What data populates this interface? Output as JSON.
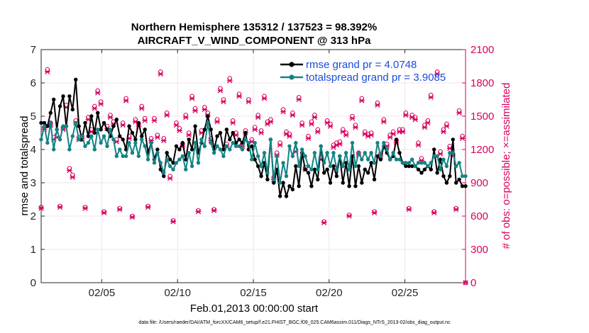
{
  "chart_data": {
    "type": "line",
    "title": [
      "Northern Hemisphere 135312 / 137523 = 98.392%",
      "AIRCRAFT_V_WIND_COMPONENT @ 313 hPa"
    ],
    "xlabel": "Feb.01,2013 00:00:00 start",
    "ylabel": "rmse and totalspread",
    "ylabel_right": "# of obs: o=possible; ×=assimilated",
    "xlim": [
      1.0,
      29.0
    ],
    "ylim": [
      0,
      7
    ],
    "ylim_right": [
      0,
      2100
    ],
    "x_ticks": [
      {
        "value": 5,
        "label": "02/05"
      },
      {
        "value": 10,
        "label": "02/10"
      },
      {
        "value": 15,
        "label": "02/15"
      },
      {
        "value": 20,
        "label": "02/20"
      },
      {
        "value": 25,
        "label": "02/25"
      }
    ],
    "y_ticks": [
      0,
      1,
      2,
      3,
      4,
      5,
      6,
      7
    ],
    "y_ticks_right": [
      0,
      300,
      600,
      900,
      1200,
      1500,
      1800,
      2100
    ],
    "grid": true,
    "legend_position": "top-right",
    "footer": "data file: /Users/raeder/DAI/ATM_forcXX/CAM6_setup/f.e21.FHIST_BGC.f09_025.CAM6assim.011/Diags_NTrS_2013-02/obs_diag_output.nc",
    "colors": {
      "rmse": "#000000",
      "spread": "#138384",
      "obs": "#d8005f"
    },
    "series": [
      {
        "name": "rmse grand pr = 4.0748",
        "color": "#000000",
        "y": [
          4.8,
          4.8,
          4.7,
          5.1,
          5.5,
          4.6,
          5.3,
          5.6,
          4.7,
          5.6,
          5.2,
          6.1,
          4.7,
          4.3,
          4.8,
          4.4,
          5.0,
          4.5,
          5.1,
          4.6,
          4.8,
          4.6,
          4.4,
          4.7,
          4.9,
          4.4,
          4.3,
          4.0,
          4.7,
          4.5,
          4.3,
          4.8,
          4.4,
          4.6,
          3.9,
          4.2,
          3.7,
          4.0,
          3.4,
          3.2,
          3.9,
          3.7,
          3.6,
          4.1,
          4.0,
          4.2,
          3.7,
          4.3,
          4.0,
          4.7,
          3.9,
          4.2,
          4.6,
          5.0,
          4.6,
          4.0,
          4.4,
          4.5,
          4.0,
          4.6,
          4.3,
          4.5,
          4.2,
          4.3,
          4.2,
          4.5,
          4.0,
          4.1,
          3.7,
          3.5,
          3.2,
          3.6,
          3.1,
          4.3,
          3.0,
          3.4,
          2.6,
          3.0,
          2.6,
          2.9,
          2.8,
          3.5,
          2.9,
          3.9,
          3.4,
          3.3,
          2.9,
          3.4,
          3.1,
          4.1,
          3.3,
          3.4,
          3.0,
          3.5,
          3.2,
          3.8,
          3.0,
          3.6,
          2.9,
          3.8,
          2.9,
          3.5,
          3.0,
          3.4,
          3.3,
          3.6,
          3.1,
          3.8,
          3.7,
          4.1,
          3.9,
          3.7,
          3.8,
          4.3,
          3.9,
          3.6,
          3.5,
          3.5,
          3.5,
          3.5,
          3.4,
          3.3,
          3.4,
          3.5,
          3.4,
          4.0,
          3.3,
          3.7,
          3.2,
          3.0,
          3.2,
          4.3,
          3.0,
          3.1,
          2.9,
          2.9
        ]
      },
      {
        "name": "totalspread grand pr = 3.9085",
        "color": "#138384",
        "y": [
          4.3,
          4.7,
          4.2,
          4.8,
          4.0,
          4.6,
          4.3,
          4.7,
          4.7,
          4.0,
          4.4,
          4.8,
          4.3,
          4.4,
          4.1,
          4.2,
          4.4,
          4.0,
          4.6,
          4.2,
          4.4,
          4.1,
          4.6,
          4.3,
          3.8,
          4.0,
          3.8,
          3.8,
          4.2,
          3.9,
          4.2,
          3.8,
          4.3,
          4.1,
          3.7,
          4.2,
          3.6,
          3.9,
          3.6,
          3.3,
          3.7,
          3.5,
          3.4,
          3.6,
          3.7,
          3.8,
          3.4,
          3.9,
          3.5,
          4.2,
          3.6,
          4.3,
          4.1,
          4.8,
          4.2,
          3.9,
          4.1,
          4.0,
          3.8,
          4.1,
          4.0,
          4.2,
          4.1,
          4.1,
          4.0,
          4.3,
          4.2,
          3.7,
          4.2,
          3.8,
          3.5,
          3.9,
          3.3,
          4.3,
          3.1,
          3.8,
          3.0,
          3.6,
          3.2,
          4.1,
          3.8,
          4.2,
          3.5,
          4.0,
          3.8,
          3.5,
          3.4,
          3.9,
          3.4,
          4.1,
          3.6,
          3.9,
          3.5,
          3.9,
          3.4,
          3.8,
          3.5,
          3.9,
          3.4,
          4.2,
          3.5,
          3.9,
          3.7,
          3.9,
          3.7,
          3.9,
          3.6,
          4.2,
          3.8,
          4.2,
          4.0,
          3.7,
          3.9,
          3.7,
          3.7,
          3.6,
          3.6,
          3.6,
          3.7,
          3.5,
          3.6,
          3.6,
          3.6,
          3.5,
          3.6,
          3.8,
          3.8,
          3.4,
          3.7,
          3.5,
          3.9,
          3.9,
          3.5,
          3.6,
          3.2,
          3.2
        ]
      },
      {
        "name": "possible",
        "marker": "o",
        "color": "#d8005f",
        "y": [
          680,
          1400,
          1920,
          1440,
          1310,
          1330,
          690,
          1400,
          1600,
          1030,
          970,
          1460,
          1310,
          1320,
          680,
          1490,
          1380,
          1590,
          1730,
          1630,
          640,
          1410,
          1510,
          1450,
          1290,
          670,
          1440,
          1660,
          1320,
          600,
          1470,
          1430,
          1590,
          1480,
          690,
          1300,
          1480,
          1330,
          1900,
          1300,
          1530,
          960,
          560,
          1440,
          1390,
          1250,
          1510,
          1350,
          1680,
          1570,
          650,
          1370,
          1580,
          1530,
          1300,
          660,
          1470,
          1750,
          1650,
          1250,
          1840,
          1460,
          1350,
          1700,
          1250,
          1370,
          1650,
          1290,
          1400,
          1510,
          1370,
          1680,
          1450,
          1470,
          950,
          1170,
          1260,
          1560,
          1360,
          1340,
          1530,
          1200,
          1670,
          1440,
          1040,
          1320,
          1450,
          1510,
          1380,
          1130,
          550,
          1460,
          1430,
          1240,
          1260,
          1270,
          1380,
          1350,
          610,
          1500,
          1420,
          1170,
          1660,
          1360,
          1340,
          1350,
          640,
          1620,
          1160,
          1470,
          1250,
          1330,
          1360,
          1280,
          1380,
          1380,
          1530,
          670,
          1510,
          1490,
          1260,
          1120,
          1420,
          1460,
          1690,
          640,
          1900,
          1180,
          1380,
          1430,
          1230,
          1160,
          670,
          1550,
          1320,
          0
        ]
      },
      {
        "name": "assimilated",
        "marker": "x",
        "color": "#d8005f",
        "y": [
          670,
          1380,
          1900,
          1420,
          1290,
          1310,
          680,
          1380,
          1580,
          1010,
          950,
          1440,
          1290,
          1300,
          670,
          1470,
          1360,
          1570,
          1710,
          1610,
          630,
          1390,
          1490,
          1430,
          1270,
          660,
          1420,
          1640,
          1300,
          590,
          1450,
          1410,
          1570,
          1460,
          680,
          1280,
          1460,
          1310,
          1880,
          1280,
          1510,
          940,
          550,
          1420,
          1370,
          1230,
          1490,
          1330,
          1660,
          1550,
          640,
          1350,
          1560,
          1510,
          1280,
          650,
          1450,
          1730,
          1630,
          1230,
          1820,
          1440,
          1330,
          1680,
          1230,
          1350,
          1630,
          1270,
          1380,
          1490,
          1350,
          1660,
          1430,
          1450,
          930,
          1150,
          1240,
          1540,
          1340,
          1320,
          1510,
          1180,
          1650,
          1420,
          1020,
          1300,
          1430,
          1490,
          1360,
          1110,
          540,
          1440,
          1410,
          1220,
          1240,
          1250,
          1360,
          1330,
          600,
          1480,
          1400,
          1150,
          1640,
          1340,
          1320,
          1330,
          630,
          1600,
          1140,
          1450,
          1230,
          1310,
          1340,
          1260,
          1360,
          1360,
          1510,
          660,
          1490,
          1470,
          1240,
          1100,
          1400,
          1440,
          1670,
          630,
          1880,
          1160,
          1360,
          1410,
          1210,
          1140,
          660,
          1530,
          1300,
          0
        ]
      }
    ]
  }
}
